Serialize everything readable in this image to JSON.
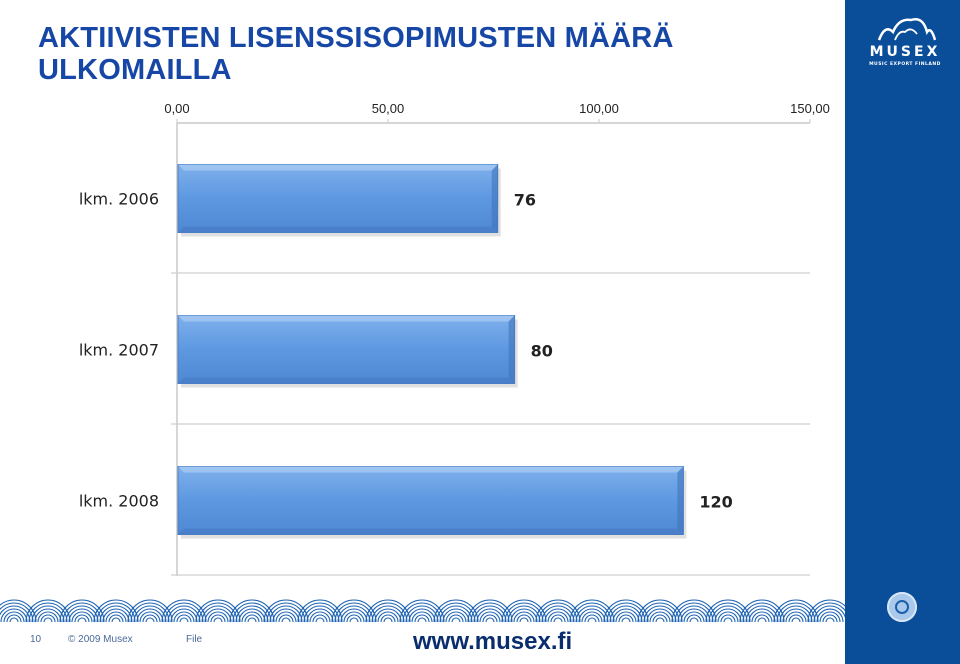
{
  "title": "AKTIIVISTEN LISENSSISOPIMUSTEN MÄÄRÄ ULKOMAILLA",
  "chart_data": {
    "type": "bar",
    "orientation": "horizontal",
    "categories": [
      "lkm. 2006",
      "lkm. 2007",
      "lkm. 2008"
    ],
    "values": [
      76,
      80,
      120
    ],
    "data_labels": [
      "76",
      "80",
      "120"
    ],
    "xlim": [
      0,
      150
    ],
    "x_ticks": [
      "0,00",
      "50,00",
      "100,00",
      "150,00"
    ],
    "x_tick_values": [
      0,
      50,
      100,
      150
    ],
    "axis_position": "top",
    "grid": true,
    "bar_color": "#5b96dd",
    "title": "",
    "xlabel": "",
    "ylabel": ""
  },
  "brand": {
    "logo_text": "MUSEX",
    "logo_subtext": "MUSIC EXPORT FINLAND",
    "sidebar_color": "#0a4e9a",
    "title_color": "#1747a6"
  },
  "footer": {
    "page_number": "10",
    "copyright": "© 2009 Musex",
    "file_label": "File",
    "website": "www.musex.fi"
  }
}
